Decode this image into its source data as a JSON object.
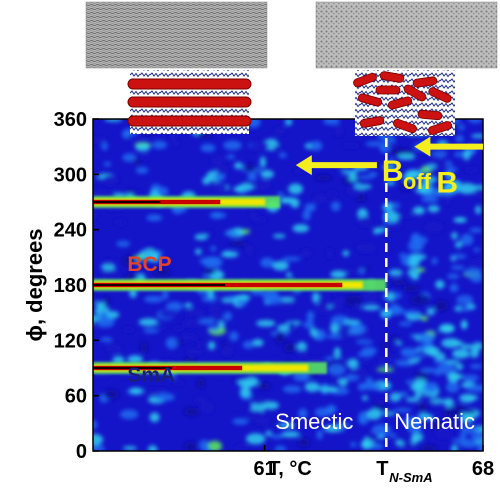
{
  "chart_data": {
    "type": "heatmap",
    "xlabel": "T, °C",
    "ylabel": "ϕ, degrees",
    "xlim": [
      55.5,
      68
    ],
    "ylim": [
      0,
      360
    ],
    "x_ticks": [
      61,
      68
    ],
    "y_ticks": [
      0,
      60,
      120,
      180,
      240,
      300,
      360
    ],
    "transition": {
      "label_main": "T",
      "label_sub": "N-SmA",
      "x": 64.9
    },
    "regions": [
      {
        "label": "Smectic",
        "x_range": [
          55.5,
          64.9
        ]
      },
      {
        "label": "Nematic",
        "x_range": [
          64.9,
          68
        ]
      }
    ],
    "bands": [
      {
        "phi": 270,
        "x_from": 55.5,
        "x_to": 61.5,
        "strength": 0.8
      },
      {
        "phi": 180,
        "x_from": 55.5,
        "x_to": 64.9,
        "strength": 1.0
      },
      {
        "phi": 90,
        "x_from": 55.5,
        "x_to": 63.0,
        "strength": 0.75
      }
    ],
    "annotations": [
      {
        "text": "BCP",
        "x": 56.6,
        "phi": 195,
        "color": "#e0452a"
      },
      {
        "text": "SmA",
        "x": 56.6,
        "phi": 75,
        "color": "#1a1f7a"
      }
    ],
    "arrows": [
      {
        "label": "B",
        "sub": "off",
        "x_from": 64.6,
        "x_to": 62.0,
        "phi": 310,
        "color": "#f5ee1e"
      },
      {
        "label": "B",
        "sub": "",
        "x_from": 68.0,
        "x_to": 65.8,
        "phi": 330,
        "color": "#f5ee1e"
      }
    ],
    "colormap": [
      "#000000",
      "#1414c8",
      "#1f6cf0",
      "#2ed0ee",
      "#5ef05a",
      "#f0e600",
      "#ff7a00",
      "#c80000"
    ],
    "grid": false,
    "legend": "none"
  },
  "insets": [
    {
      "name": "smectic-inset",
      "label": "smectic micrograph and layered model"
    },
    {
      "name": "nematic-inset",
      "label": "nematic micrograph and random model"
    }
  ]
}
